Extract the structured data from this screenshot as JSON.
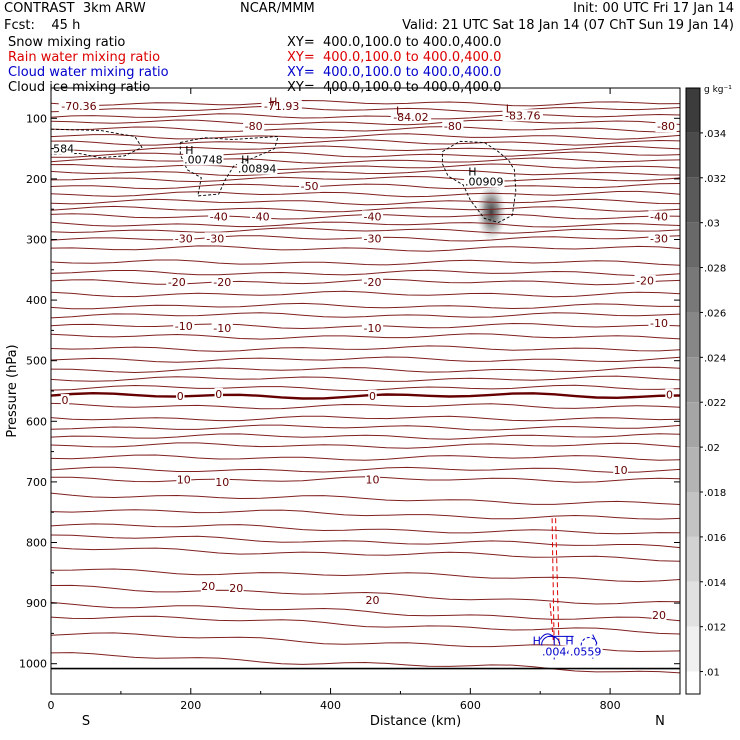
{
  "header": {
    "model": "CONTRAST  3km ARW",
    "center": "NCAR/MMM",
    "init": "Init: 00 UTC Fri 17 Jan 14",
    "fcst": "Fcst:    45 h",
    "valid": "Valid: 21 UTC Sat 18 Jan 14 (07 ChT Sun 19 Jan 14)",
    "fields": [
      {
        "name": "Snow mixing ratio",
        "xy": "XY=  400.0,100.0 to 400.0,400.0",
        "color": "#000000"
      },
      {
        "name": "Rain water mixing ratio",
        "xy": "XY=  400.0,100.0 to 400.0,400.0",
        "color": "#dd0000"
      },
      {
        "name": "Cloud water mixing ratio",
        "xy": "XY=  400.0,100.0 to 400.0,400.0",
        "color": "#0000cc"
      },
      {
        "name": "Cloud ice mixing ratio",
        "xy": "XY=  400.0,100.0 to 400.0,400.0",
        "color": "#000000"
      }
    ]
  },
  "chart_data": {
    "type": "cross-section contour",
    "xlabel": "Distance (km)",
    "ylabel": "Pressure (hPa)",
    "xlim": [
      0,
      900
    ],
    "ylim": [
      1050,
      50
    ],
    "xticks": [
      0,
      200,
      400,
      600,
      800
    ],
    "yticks": [
      100,
      200,
      300,
      400,
      500,
      600,
      700,
      800,
      900,
      1000
    ],
    "end_labels": {
      "left": "S",
      "right": "N"
    },
    "colorbar": {
      "unit": "g kg⁻¹",
      "ticks": [
        ".034",
        ".032",
        ".03",
        ".028",
        ".026",
        ".024",
        ".022",
        ".02",
        ".018",
        ".016",
        ".014",
        ".012",
        ".01"
      ]
    },
    "temperature_labels": [
      {
        "text": "-70.36",
        "x": 40,
        "p": 80
      },
      {
        "text": "-71.93",
        "x": 330,
        "p": 80
      },
      {
        "text": "-84.02",
        "x": 515,
        "p": 98
      },
      {
        "text": "-83.76",
        "x": 675,
        "p": 95
      },
      {
        "text": "-80",
        "x": 290,
        "p": 113
      },
      {
        "text": "-80",
        "x": 575,
        "p": 113
      },
      {
        "text": "-80",
        "x": 880,
        "p": 113
      },
      {
        "text": "-50",
        "x": 370,
        "p": 212
      },
      {
        "text": "-40",
        "x": 240,
        "p": 262
      },
      {
        "text": "-40",
        "x": 300,
        "p": 262
      },
      {
        "text": "-40",
        "x": 460,
        "p": 262
      },
      {
        "text": "-40",
        "x": 870,
        "p": 262
      },
      {
        "text": "-30",
        "x": 190,
        "p": 298
      },
      {
        "text": "-30",
        "x": 235,
        "p": 298
      },
      {
        "text": "-30",
        "x": 460,
        "p": 298
      },
      {
        "text": "-30",
        "x": 870,
        "p": 298
      },
      {
        "text": "-20",
        "x": 180,
        "p": 370
      },
      {
        "text": "-20",
        "x": 245,
        "p": 370
      },
      {
        "text": "-20",
        "x": 460,
        "p": 370
      },
      {
        "text": "-20",
        "x": 850,
        "p": 368
      },
      {
        "text": "-10",
        "x": 190,
        "p": 443
      },
      {
        "text": "-10",
        "x": 245,
        "p": 446
      },
      {
        "text": "-10",
        "x": 460,
        "p": 446
      },
      {
        "text": "-10",
        "x": 870,
        "p": 438
      },
      {
        "text": "0",
        "x": 20,
        "p": 565
      },
      {
        "text": "0",
        "x": 185,
        "p": 558
      },
      {
        "text": "0",
        "x": 240,
        "p": 555
      },
      {
        "text": "0",
        "x": 460,
        "p": 558
      },
      {
        "text": "0",
        "x": 885,
        "p": 556
      },
      {
        "text": "10",
        "x": 815,
        "p": 680
      },
      {
        "text": "10",
        "x": 190,
        "p": 696
      },
      {
        "text": "10",
        "x": 245,
        "p": 700
      },
      {
        "text": "10",
        "x": 460,
        "p": 696
      },
      {
        "text": "20",
        "x": 225,
        "p": 872
      },
      {
        "text": "20",
        "x": 265,
        "p": 875
      },
      {
        "text": "20",
        "x": 460,
        "p": 895
      },
      {
        "text": "20",
        "x": 870,
        "p": 920
      }
    ],
    "ice_labels": [
      {
        "text": "584",
        "x": 18,
        "p": 150
      },
      {
        "text": ".00748",
        "x": 218,
        "p": 168
      },
      {
        "text": ".00894",
        "x": 295,
        "p": 183
      },
      {
        "text": ".00909",
        "x": 620,
        "p": 204
      }
    ],
    "extrema": [
      {
        "text": "H",
        "x": 318,
        "p": 72,
        "color": "#660000"
      },
      {
        "text": "L",
        "x": 498,
        "p": 87,
        "color": "#660000"
      },
      {
        "text": "L",
        "x": 655,
        "p": 84,
        "color": "#660000"
      },
      {
        "text": "H",
        "x": 198,
        "p": 152,
        "color": "#000000"
      },
      {
        "text": "H",
        "x": 278,
        "p": 168,
        "color": "#000000"
      },
      {
        "text": "H",
        "x": 603,
        "p": 188,
        "color": "#000000"
      },
      {
        "text": "H",
        "x": 695,
        "p": 962,
        "color": "#0000cc"
      },
      {
        "text": "H",
        "x": 742,
        "p": 962,
        "color": "#0000cc"
      }
    ],
    "cloud_water_labels": [
      {
        "text": ".0044",
        "x": 725,
        "p": 980
      },
      {
        "text": ".0559",
        "x": 765,
        "p": 980
      }
    ]
  }
}
